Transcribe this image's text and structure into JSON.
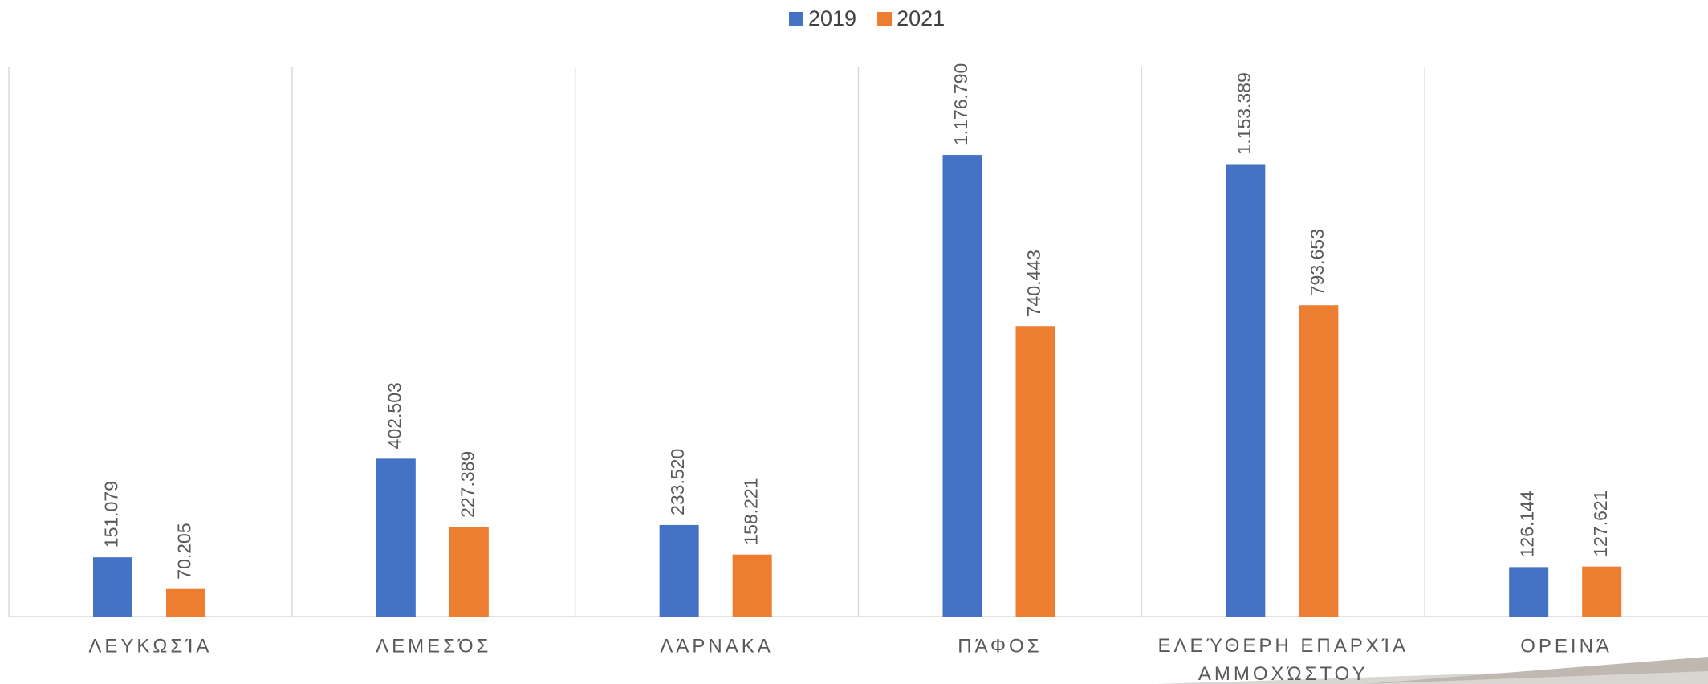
{
  "chart_data": {
    "type": "bar",
    "categories": [
      "ΛΕΥΚΩΣΊΑ",
      "ΛΕΜΕΣΌΣ",
      "ΛΆΡΝΑΚΑ",
      "ΠΆΦΟΣ",
      "ΕΛΕΎΘΕΡΗ ΕΠΑΡΧΊΑ ΑΜΜΟΧΏΣΤΟΥ",
      "ΟΡΕΙΝΆ"
    ],
    "series": [
      {
        "name": "2019",
        "color": "#4472c4",
        "values": [
          151079,
          402503,
          233520,
          1176790,
          1153389,
          126144
        ],
        "value_labels": [
          "151.079",
          "402.503",
          "233.520",
          "1.176.790",
          "1.153.389",
          "126.144"
        ]
      },
      {
        "name": "2021",
        "color": "#ed7d31",
        "values": [
          70205,
          227389,
          158221,
          740443,
          793653,
          127621
        ],
        "value_labels": [
          "70.205",
          "227.389",
          "158.221",
          "740.443",
          "793.653",
          "127.621"
        ]
      }
    ],
    "ylim": [
      0,
      1400000
    ],
    "legend": "top"
  }
}
